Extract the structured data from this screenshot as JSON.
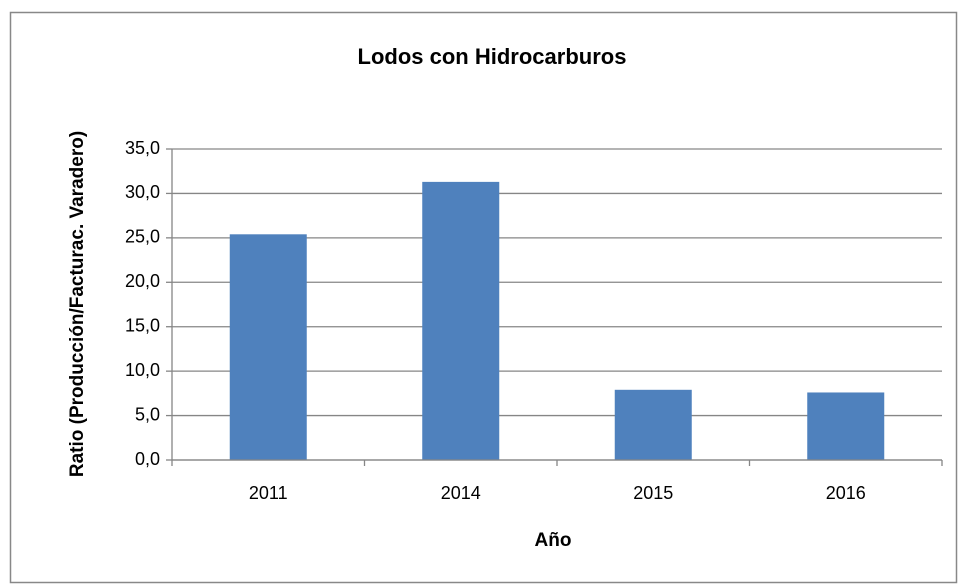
{
  "chart_data": {
    "type": "bar",
    "title": "Lodos con Hidrocarburos",
    "x_label": "Año",
    "y_label": "Ratio (Producción/Facturac. Varadero)",
    "categories": [
      "2011",
      "2014",
      "2015",
      "2016"
    ],
    "values": [
      25.4,
      31.3,
      7.9,
      7.6
    ],
    "color": "#4f81bd",
    "ylim": [
      0,
      35
    ],
    "yticks": [
      {
        "value": 0,
        "label": "0,0"
      },
      {
        "value": 5,
        "label": "5,0"
      },
      {
        "value": 10,
        "label": "10,0"
      },
      {
        "value": 15,
        "label": "15,0"
      },
      {
        "value": 20,
        "label": "20,0"
      },
      {
        "value": 25,
        "label": "25,0"
      },
      {
        "value": 30,
        "label": "30,0"
      },
      {
        "value": 35,
        "label": "35,0"
      }
    ],
    "grid": true
  }
}
